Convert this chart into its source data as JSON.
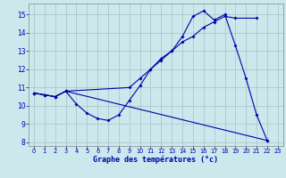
{
  "xlabel": "Graphe des températures (°c)",
  "bg_color": "#cce8ec",
  "grid_color": "#aac8cc",
  "line_color": "#0000aa",
  "xlim": [
    -0.5,
    23.5
  ],
  "ylim": [
    7.8,
    15.6
  ],
  "yticks": [
    8,
    9,
    10,
    11,
    12,
    13,
    14,
    15
  ],
  "xticks": [
    0,
    1,
    2,
    3,
    4,
    5,
    6,
    7,
    8,
    9,
    10,
    11,
    12,
    13,
    14,
    15,
    16,
    17,
    18,
    19,
    20,
    21,
    22,
    23
  ],
  "series1_x": [
    0,
    1,
    2,
    3,
    4,
    5,
    6,
    7,
    8,
    9,
    10,
    11,
    12,
    13,
    14,
    15,
    16,
    17,
    18,
    19,
    20,
    21,
    22
  ],
  "series1_y": [
    10.7,
    10.6,
    10.5,
    10.8,
    10.1,
    9.6,
    9.3,
    9.2,
    9.5,
    10.3,
    11.1,
    12.0,
    12.6,
    13.0,
    13.8,
    14.9,
    15.2,
    14.7,
    15.0,
    13.3,
    11.5,
    9.5,
    8.1
  ],
  "series2_x": [
    0,
    1,
    2,
    3,
    9,
    10,
    11,
    12,
    13,
    14,
    15,
    16,
    17,
    18,
    19,
    21
  ],
  "series2_y": [
    10.7,
    10.6,
    10.5,
    10.8,
    11.0,
    11.5,
    12.0,
    12.5,
    13.0,
    13.5,
    13.8,
    14.3,
    14.6,
    14.9,
    14.8,
    14.8
  ],
  "series3_x": [
    0,
    1,
    2,
    3,
    22
  ],
  "series3_y": [
    10.7,
    10.6,
    10.5,
    10.8,
    8.1
  ]
}
